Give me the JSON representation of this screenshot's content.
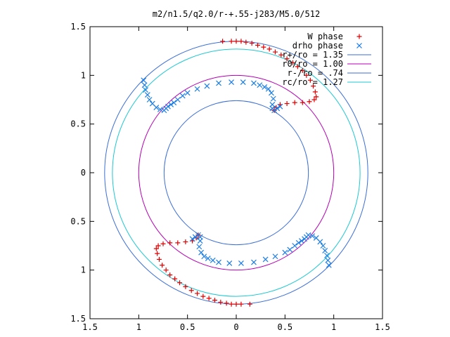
{
  "chart_data": {
    "type": "scatter",
    "title": "m2/n1.5/q2.0/r-+.55-j283/M5.0/512",
    "xlabel": "",
    "ylabel": "",
    "xlim": [
      -1.5,
      1.5
    ],
    "ylim": [
      -1.5,
      1.5
    ],
    "xticks": [
      {
        "v": -1.5,
        "label": "1.5"
      },
      {
        "v": -1,
        "label": "1"
      },
      {
        "v": -0.5,
        "label": "0.5"
      },
      {
        "v": 0,
        "label": "0"
      },
      {
        "v": 0.5,
        "label": "0.5"
      },
      {
        "v": 1,
        "label": "1"
      },
      {
        "v": 1.5,
        "label": "1.5"
      }
    ],
    "yticks": [
      {
        "v": 1.5,
        "label": "1.5"
      },
      {
        "v": 1,
        "label": "1"
      },
      {
        "v": 0.5,
        "label": "0.5"
      },
      {
        "v": 0,
        "label": "0"
      },
      {
        "v": -0.5,
        "label": "0.5"
      },
      {
        "v": -1,
        "label": "1"
      },
      {
        "v": -1.5,
        "label": "1.5"
      }
    ],
    "grid": false,
    "legend_position": "top-right",
    "circles": [
      {
        "name": "r+/ro = 1.35",
        "r": 1.35,
        "color": "#3b6ed6"
      },
      {
        "name": "r0/ro = 1.00",
        "r": 1.0,
        "color": "#b400b4"
      },
      {
        "name": "r-/ro = .74",
        "r": 0.74,
        "color": "#3b6ed6"
      },
      {
        "name": "rc/ro = 1.27",
        "r": 1.27,
        "color": "#1ec8d2"
      }
    ],
    "series": [
      {
        "name": "W phase",
        "marker": "plus",
        "color": "#e00000",
        "points": [
          [
            -0.14,
            1.35
          ],
          [
            -0.05,
            1.35
          ],
          [
            0.0,
            1.35
          ],
          [
            0.05,
            1.35
          ],
          [
            0.1,
            1.34
          ],
          [
            0.16,
            1.33
          ],
          [
            0.22,
            1.31
          ],
          [
            0.28,
            1.29
          ],
          [
            0.34,
            1.27
          ],
          [
            0.4,
            1.24
          ],
          [
            0.46,
            1.21
          ],
          [
            0.52,
            1.17
          ],
          [
            0.58,
            1.13
          ],
          [
            0.63,
            1.09
          ],
          [
            0.68,
            1.05
          ],
          [
            0.72,
            1.0
          ],
          [
            0.76,
            0.95
          ],
          [
            0.79,
            0.89
          ],
          [
            0.81,
            0.83
          ],
          [
            0.82,
            0.78
          ],
          [
            0.8,
            0.75
          ],
          [
            0.75,
            0.73
          ],
          [
            0.68,
            0.72
          ],
          [
            0.6,
            0.72
          ],
          [
            0.52,
            0.71
          ],
          [
            0.45,
            0.7
          ],
          [
            0.41,
            0.67
          ],
          [
            0.39,
            0.64
          ],
          [
            0.14,
            -1.35
          ],
          [
            0.05,
            -1.35
          ],
          [
            0.0,
            -1.35
          ],
          [
            -0.05,
            -1.35
          ],
          [
            -0.1,
            -1.34
          ],
          [
            -0.16,
            -1.33
          ],
          [
            -0.22,
            -1.31
          ],
          [
            -0.28,
            -1.29
          ],
          [
            -0.34,
            -1.27
          ],
          [
            -0.4,
            -1.24
          ],
          [
            -0.46,
            -1.21
          ],
          [
            -0.52,
            -1.17
          ],
          [
            -0.58,
            -1.13
          ],
          [
            -0.63,
            -1.09
          ],
          [
            -0.68,
            -1.05
          ],
          [
            -0.72,
            -1.0
          ],
          [
            -0.76,
            -0.95
          ],
          [
            -0.79,
            -0.89
          ],
          [
            -0.81,
            -0.83
          ],
          [
            -0.82,
            -0.78
          ],
          [
            -0.8,
            -0.75
          ],
          [
            -0.75,
            -0.73
          ],
          [
            -0.68,
            -0.72
          ],
          [
            -0.6,
            -0.72
          ],
          [
            -0.52,
            -0.71
          ],
          [
            -0.45,
            -0.7
          ],
          [
            -0.41,
            -0.67
          ],
          [
            -0.39,
            -0.64
          ]
        ]
      },
      {
        "name": "drho phase",
        "marker": "x",
        "color": "#1a7de6",
        "points": [
          [
            -0.95,
            0.95
          ],
          [
            -0.94,
            0.9
          ],
          [
            -0.93,
            0.85
          ],
          [
            -0.91,
            0.8
          ],
          [
            -0.89,
            0.75
          ],
          [
            -0.86,
            0.71
          ],
          [
            -0.82,
            0.67
          ],
          [
            -0.78,
            0.65
          ],
          [
            -0.74,
            0.64
          ],
          [
            -0.72,
            0.66
          ],
          [
            -0.7,
            0.68
          ],
          [
            -0.67,
            0.7
          ],
          [
            -0.64,
            0.72
          ],
          [
            -0.6,
            0.75
          ],
          [
            -0.55,
            0.79
          ],
          [
            -0.5,
            0.82
          ],
          [
            -0.4,
            0.86
          ],
          [
            -0.3,
            0.89
          ],
          [
            -0.18,
            0.92
          ],
          [
            -0.05,
            0.93
          ],
          [
            0.07,
            0.93
          ],
          [
            0.18,
            0.92
          ],
          [
            0.24,
            0.9
          ],
          [
            0.29,
            0.88
          ],
          [
            0.33,
            0.86
          ],
          [
            0.36,
            0.82
          ],
          [
            0.38,
            0.76
          ],
          [
            0.37,
            0.7
          ],
          [
            0.37,
            0.66
          ],
          [
            0.39,
            0.64
          ],
          [
            0.42,
            0.66
          ],
          [
            0.45,
            0.68
          ],
          [
            0.95,
            -0.95
          ],
          [
            0.94,
            -0.9
          ],
          [
            0.93,
            -0.85
          ],
          [
            0.91,
            -0.8
          ],
          [
            0.89,
            -0.75
          ],
          [
            0.86,
            -0.71
          ],
          [
            0.82,
            -0.67
          ],
          [
            0.78,
            -0.65
          ],
          [
            0.74,
            -0.64
          ],
          [
            0.72,
            -0.66
          ],
          [
            0.7,
            -0.68
          ],
          [
            0.67,
            -0.7
          ],
          [
            0.64,
            -0.72
          ],
          [
            0.6,
            -0.75
          ],
          [
            0.55,
            -0.79
          ],
          [
            0.5,
            -0.82
          ],
          [
            0.4,
            -0.86
          ],
          [
            0.3,
            -0.89
          ],
          [
            0.18,
            -0.92
          ],
          [
            0.05,
            -0.93
          ],
          [
            -0.07,
            -0.93
          ],
          [
            -0.18,
            -0.92
          ],
          [
            -0.24,
            -0.9
          ],
          [
            -0.29,
            -0.88
          ],
          [
            -0.33,
            -0.86
          ],
          [
            -0.36,
            -0.82
          ],
          [
            -0.38,
            -0.76
          ],
          [
            -0.37,
            -0.7
          ],
          [
            -0.37,
            -0.66
          ],
          [
            -0.39,
            -0.64
          ],
          [
            -0.42,
            -0.66
          ],
          [
            -0.45,
            -0.68
          ]
        ]
      }
    ]
  }
}
